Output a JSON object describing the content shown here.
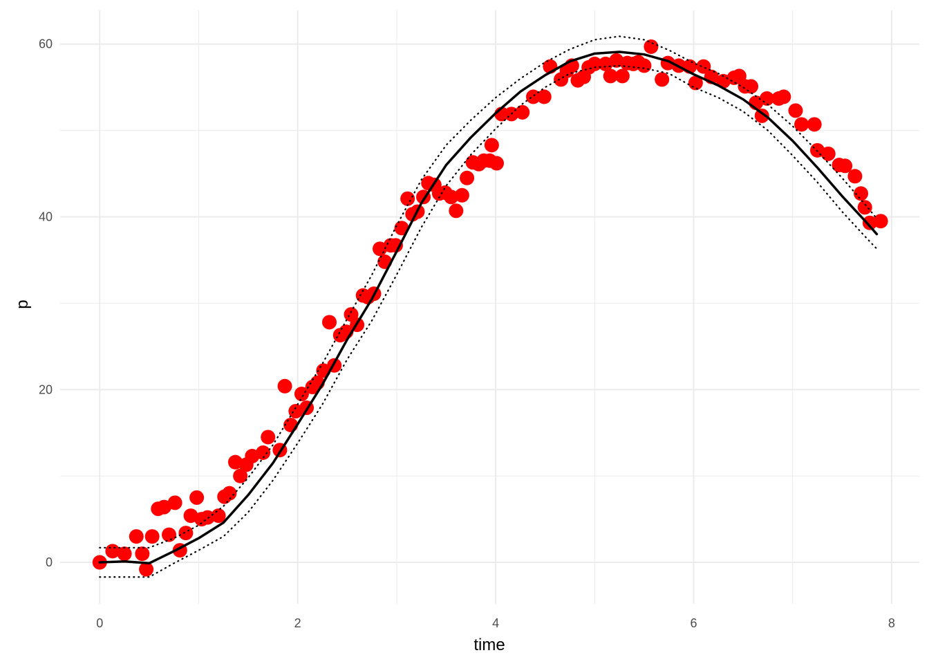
{
  "chart_data": {
    "type": "scatter",
    "xlabel": "time",
    "ylabel": "p",
    "xlim": [
      -0.4,
      8.28
    ],
    "ylim": [
      -4.8,
      63.9
    ],
    "xticks": [
      0,
      2,
      4,
      6,
      8
    ],
    "yticks": [
      0,
      20,
      40,
      60
    ],
    "grid": true,
    "minor_grid": true,
    "point_color": "#ff0000",
    "x": [
      0,
      0.13,
      0.25,
      0.37,
      0.43,
      0.47,
      0.53,
      0.59,
      0.65,
      0.7,
      0.76,
      0.81,
      0.87,
      0.92,
      0.98,
      1.03,
      1.09,
      1.2,
      1.26,
      1.31,
      1.37,
      1.42,
      1.48,
      1.54,
      1.65,
      1.7,
      1.82,
      1.87,
      1.93,
      1.98,
      2.04,
      2.09,
      2.15,
      2.2,
      2.26,
      2.32,
      2.37,
      2.43,
      2.49,
      2.54,
      2.6,
      2.66,
      2.71,
      2.77,
      2.83,
      2.88,
      2.94,
      2.99,
      3.05,
      3.11,
      3.16,
      3.21,
      3.27,
      3.32,
      3.38,
      3.43,
      3.49,
      3.55,
      3.6,
      3.66,
      3.71,
      3.77,
      3.83,
      3.88,
      3.94,
      3.96,
      4.01,
      4.06,
      4.16,
      4.27,
      4.38,
      4.49,
      4.55,
      4.66,
      4.72,
      4.77,
      4.83,
      4.89,
      4.94,
      5.0,
      5.11,
      5.16,
      5.22,
      5.28,
      5.33,
      5.39,
      5.44,
      5.5,
      5.57,
      5.68,
      5.74,
      5.85,
      5.96,
      6.02,
      6.1,
      6.18,
      6.3,
      6.41,
      6.46,
      6.52,
      6.58,
      6.63,
      6.69,
      6.74,
      6.86,
      6.91,
      7.03,
      7.09,
      7.22,
      7.25,
      7.36,
      7.47,
      7.53,
      7.63,
      7.69,
      7.73,
      7.78,
      7.89
    ],
    "values": [
      0,
      1.3,
      1,
      3,
      1,
      -0.8,
      3,
      6.2,
      6.4,
      3.2,
      6.9,
      1.4,
      3.4,
      5.4,
      7.5,
      5,
      5.2,
      5.4,
      7.6,
      8,
      11.6,
      10,
      11.3,
      12.3,
      12.7,
      14.5,
      13,
      20.4,
      15.9,
      17.5,
      19.5,
      17.9,
      20.3,
      20.8,
      22.2,
      27.8,
      22.8,
      26.3,
      26.7,
      28.7,
      27.5,
      30.9,
      30.7,
      31.1,
      36.3,
      34.8,
      36.7,
      36.7,
      38.7,
      42.1,
      40.3,
      40.6,
      42.3,
      43.9,
      43.7,
      42.7,
      42.8,
      42.3,
      40.7,
      42.5,
      44.5,
      46.3,
      46.1,
      46.5,
      46.5,
      48.3,
      46.2,
      51.9,
      51.9,
      52.1,
      53.9,
      53.9,
      57.4,
      55.9,
      56.9,
      57.5,
      55.8,
      56.2,
      57.3,
      57.7,
      57.7,
      56.3,
      58.1,
      56.3,
      57.8,
      57.7,
      57.9,
      57.5,
      59.7,
      55.9,
      57.8,
      57.5,
      57.4,
      55.5,
      57.4,
      56.2,
      55.7,
      56.1,
      56.3,
      55.1,
      55.1,
      53.2,
      51.7,
      53.7,
      53.7,
      53.9,
      52.3,
      50.7,
      50.7,
      47.7,
      47.3,
      46,
      45.9,
      44.7,
      42.7,
      41.1,
      39.3,
      39.5
    ],
    "lines": {
      "x": [
        0,
        0.25,
        0.5,
        0.75,
        1,
        1.25,
        1.5,
        1.75,
        2,
        2.25,
        2.5,
        2.75,
        3,
        3.25,
        3.5,
        3.75,
        4,
        4.25,
        4.5,
        4.75,
        5,
        5.25,
        5.5,
        5.75,
        6,
        6.25,
        6.5,
        6.75,
        7,
        7.25,
        7.5,
        7.75,
        7.85
      ],
      "series": [
        {
          "color": "#000000",
          "style": "solid",
          "values": [
            0,
            0.1,
            -0.1,
            1.3,
            2.8,
            4.6,
            7.8,
            11.5,
            16,
            20.6,
            25.8,
            30.5,
            36,
            41.6,
            46,
            49.2,
            52,
            54.5,
            56.4,
            58,
            58.9,
            59.1,
            58.8,
            58,
            56.5,
            55.2,
            53.6,
            51.5,
            48.8,
            45.7,
            42.4,
            39.3,
            38
          ]
        },
        {
          "color": "#000000",
          "style": "dotted",
          "values": [
            1.7,
            1.7,
            1.7,
            2.8,
            4.3,
            6.5,
            9.8,
            13.6,
            18.3,
            23,
            28.2,
            33.3,
            39,
            44.3,
            48.3,
            51.2,
            53.8,
            56,
            57.9,
            59.4,
            60.5,
            60.9,
            60.5,
            59.3,
            57.8,
            56.6,
            55,
            53,
            50.5,
            47.6,
            44.5,
            41.2,
            39.8
          ]
        },
        {
          "color": "#000000",
          "style": "dotted",
          "values": [
            -1.7,
            -1.7,
            -1.7,
            -0.1,
            1.4,
            3,
            5.8,
            9.5,
            13.8,
            18.3,
            23.5,
            28,
            33.3,
            38.8,
            43.6,
            47.2,
            50.2,
            52.9,
            55,
            56.6,
            57.3,
            57.5,
            57.2,
            56.6,
            55,
            53.8,
            52.2,
            50,
            47.1,
            44,
            40.6,
            37.5,
            36.3
          ]
        }
      ]
    }
  }
}
